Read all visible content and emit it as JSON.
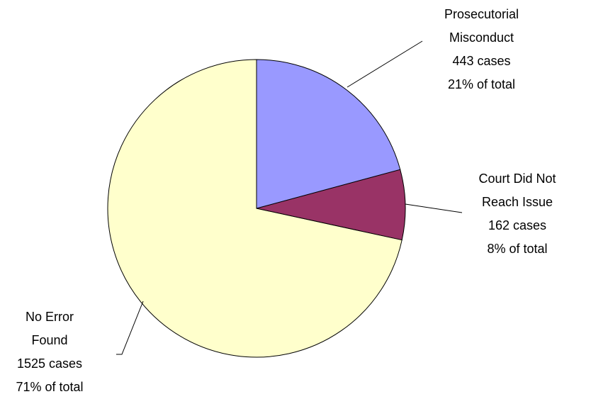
{
  "chart_data": {
    "type": "pie",
    "categories": [
      "Prosecutorial Misconduct",
      "Court Did Not Reach Issue",
      "No Error Found"
    ],
    "values": [
      443,
      162,
      1525
    ],
    "value_labels": [
      "443 cases",
      "162 cases",
      "1525 cases"
    ],
    "percent_labels": [
      "21% of total",
      "8% of total",
      "71% of total"
    ],
    "colors": [
      "#9999ff",
      "#993366",
      "#ffffcc"
    ]
  }
}
